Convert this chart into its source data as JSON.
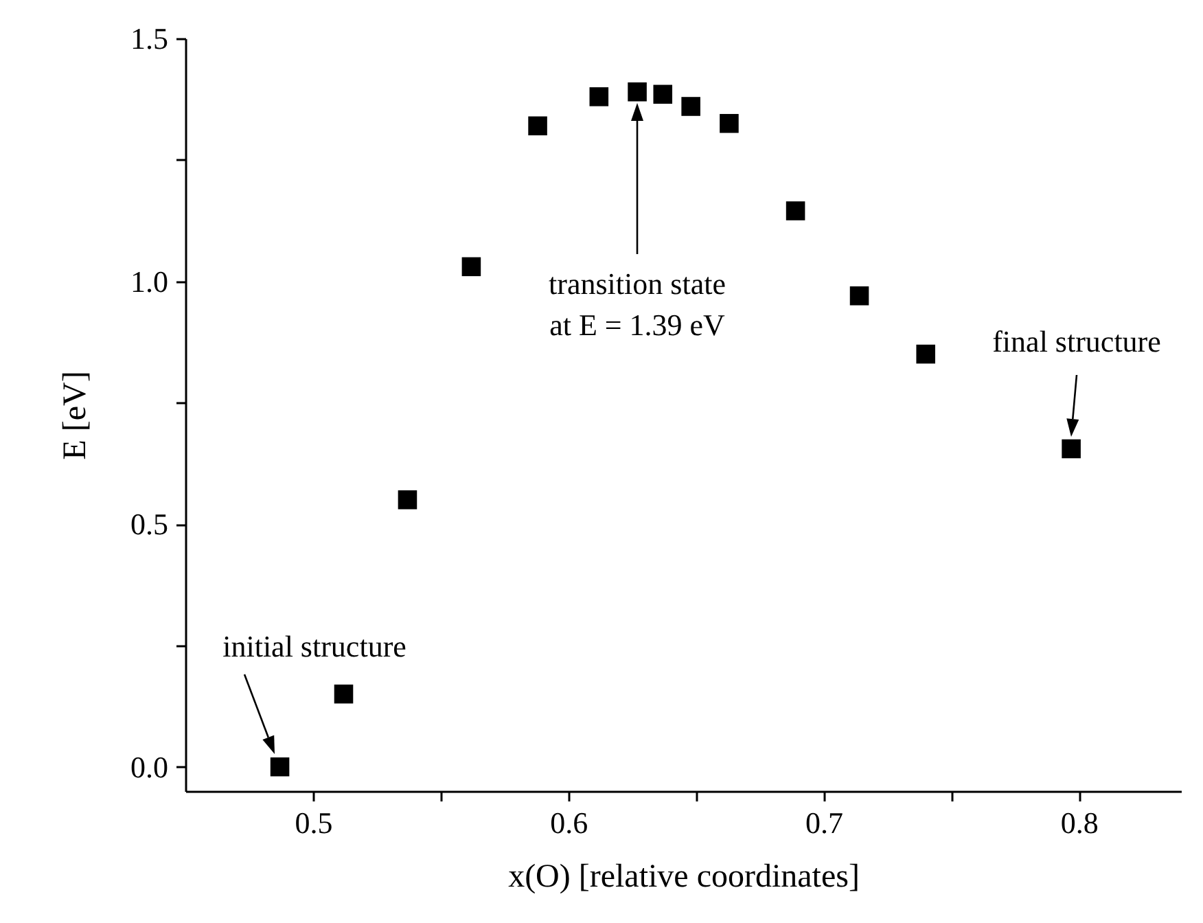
{
  "chart_data": {
    "type": "scatter",
    "xlabel": "x(O) [relative coordinates]",
    "ylabel": "E [eV]",
    "x": [
      0.487,
      0.512,
      0.537,
      0.562,
      0.588,
      0.612,
      0.627,
      0.637,
      0.648,
      0.663,
      0.689,
      0.714,
      0.74,
      0.797
    ],
    "series": [
      {
        "color": "#000000",
        "values": [
          0.0,
          0.15,
          0.55,
          1.03,
          1.32,
          1.38,
          1.39,
          1.385,
          1.36,
          1.325,
          1.145,
          0.97,
          0.85,
          0.655
        ]
      }
    ],
    "marker": "square",
    "xlim": [
      0.45,
      0.84
    ],
    "xticks": [
      0.5,
      {
        "value": 0.55,
        "label": null
      },
      0.6,
      {
        "value": 0.65,
        "label": null
      },
      0.7,
      {
        "value": 0.75,
        "label": null
      },
      0.8
    ],
    "ylim": [
      -0.05,
      1.5
    ],
    "yticks": [
      {
        "value": 0,
        "label": "0.0"
      },
      {
        "value": 0.25,
        "label": null
      },
      0.5,
      {
        "value": 0.75,
        "label": null
      },
      {
        "value": 1,
        "label": "1.0"
      },
      {
        "value": 1.25,
        "label": null
      },
      1.5
    ],
    "grid": false,
    "annotations": [
      "initial structure",
      "transition state\nat E = 1.39 eV",
      "final structure"
    ]
  }
}
